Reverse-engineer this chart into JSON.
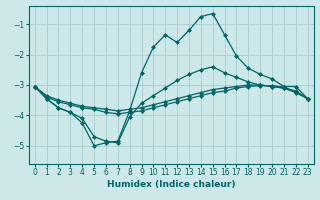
{
  "xlabel": "Humidex (Indice chaleur)",
  "bg_color": "#cce8e8",
  "grid_color": "#aacccc",
  "line_color": "#006666",
  "xlim": [
    -0.5,
    23.5
  ],
  "ylim": [
    -5.6,
    -0.4
  ],
  "yticks": [
    -5,
    -4,
    -3,
    -2,
    -1
  ],
  "xticks": [
    0,
    1,
    2,
    3,
    4,
    5,
    6,
    7,
    8,
    9,
    10,
    11,
    12,
    13,
    14,
    15,
    16,
    17,
    18,
    19,
    20,
    21,
    22,
    23
  ],
  "line1_x": [
    0,
    1,
    2,
    3,
    4,
    5,
    6,
    7,
    8,
    9,
    10,
    11,
    12,
    13,
    14,
    15,
    16,
    17,
    18,
    19,
    20,
    21,
    22,
    23
  ],
  "line1_y": [
    -3.05,
    -3.45,
    -3.75,
    -3.9,
    -4.25,
    -5.0,
    -4.9,
    -4.85,
    -3.85,
    -2.6,
    -1.75,
    -1.35,
    -1.6,
    -1.2,
    -0.75,
    -0.65,
    -1.35,
    -2.05,
    -2.45,
    -2.65,
    -2.8,
    -3.05,
    -3.05,
    -3.45
  ],
  "line2_x": [
    0,
    1,
    2,
    3,
    4,
    5,
    6,
    7,
    8,
    9,
    10,
    11,
    12,
    13,
    14,
    15,
    16,
    17,
    18,
    19,
    20,
    21,
    22,
    23
  ],
  "line2_y": [
    -3.05,
    -3.45,
    -3.75,
    -3.9,
    -4.1,
    -4.7,
    -4.85,
    -4.9,
    -4.05,
    -3.6,
    -3.35,
    -3.1,
    -2.85,
    -2.65,
    -2.5,
    -2.4,
    -2.6,
    -2.75,
    -2.9,
    -3.0,
    -3.05,
    -3.1,
    -3.2,
    -3.45
  ],
  "line3_x": [
    0,
    1,
    2,
    3,
    4,
    5,
    6,
    7,
    8,
    9,
    10,
    11,
    12,
    13,
    14,
    15,
    16,
    17,
    18,
    19,
    20,
    21,
    22,
    23
  ],
  "line3_y": [
    -3.05,
    -3.35,
    -3.5,
    -3.6,
    -3.7,
    -3.75,
    -3.8,
    -3.85,
    -3.8,
    -3.75,
    -3.65,
    -3.55,
    -3.45,
    -3.35,
    -3.25,
    -3.15,
    -3.1,
    -3.05,
    -3.0,
    -3.0,
    -3.05,
    -3.1,
    -3.25,
    -3.45
  ],
  "line4_x": [
    0,
    1,
    2,
    3,
    4,
    5,
    6,
    7,
    8,
    9,
    10,
    11,
    12,
    13,
    14,
    15,
    16,
    17,
    18,
    19,
    20,
    21,
    22,
    23
  ],
  "line4_y": [
    -3.05,
    -3.4,
    -3.55,
    -3.65,
    -3.75,
    -3.8,
    -3.9,
    -3.95,
    -3.9,
    -3.85,
    -3.75,
    -3.65,
    -3.55,
    -3.45,
    -3.35,
    -3.25,
    -3.2,
    -3.1,
    -3.05,
    -3.02,
    -3.02,
    -3.07,
    -3.22,
    -3.45
  ]
}
